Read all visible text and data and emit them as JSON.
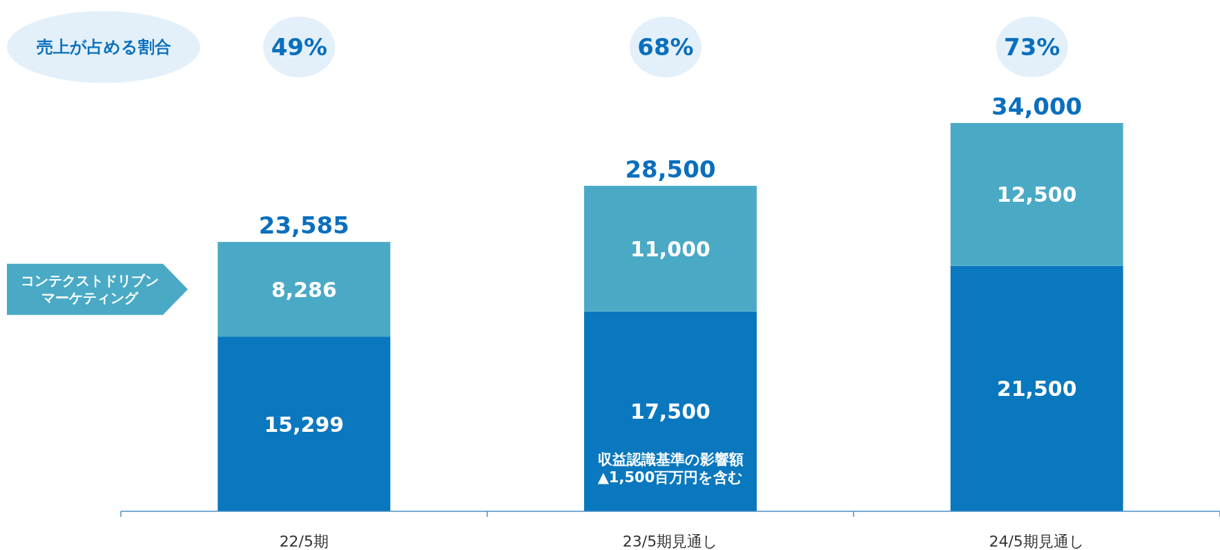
{
  "chart_data": {
    "type": "bar",
    "stacked": true,
    "categories": [
      "22/5期",
      "23/5期見通し",
      "24/5期見通し"
    ],
    "series": [
      {
        "color": "#0a78be",
        "values": [
          15299,
          17500,
          21500
        ],
        "value_labels": [
          "15,299",
          "17,500",
          "21,500"
        ]
      },
      {
        "name": "コンテクストドリブンマーケティング",
        "color": "#4aaac6",
        "values": [
          8286,
          11000,
          12500
        ],
        "value_labels": [
          "8,286",
          "11,000",
          "12,500"
        ]
      }
    ],
    "totals": [
      "23,585",
      "28,500",
      "34,000"
    ],
    "legend": "left",
    "annotations": [
      "売上が占める割合",
      "49%",
      "68%",
      "73%",
      "収益認識基準の影響額▲1,500百万円を含む"
    ]
  }
}
